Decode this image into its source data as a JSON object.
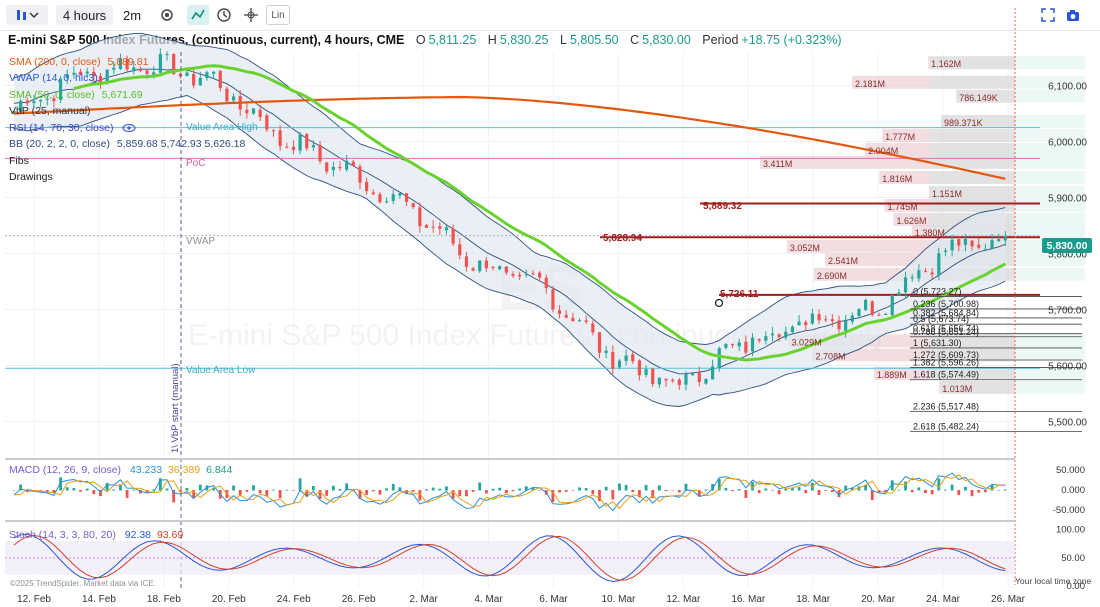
{
  "toolbar": {
    "timeframe": "4 hours",
    "period": "2m",
    "scale_label": "Lin",
    "icons": [
      "bars-style-icon",
      "chevron-down-icon",
      "settings-icon",
      "line-tool-icon",
      "clock-icon",
      "crosshair-icon",
      "linear-scale-icon",
      "fullscreen-icon",
      "camera-icon"
    ]
  },
  "header": {
    "title": "E-mini S&P 500 Index Futures, (continuous, current), 4 hours, CME",
    "open_label": "O",
    "open": "5,811.25",
    "high_label": "H",
    "high": "5,830.25",
    "low_label": "L",
    "low": "5,805.50",
    "close_label": "C",
    "close": "5,830.00",
    "period_label": "Period",
    "period_change": "+18.75 (+0.323%)"
  },
  "legends": {
    "sma200": {
      "label": "SMA (200, 0, close)",
      "value": "5,889.81",
      "color": "#e4570f"
    },
    "vwap": {
      "label": "VWAP (14, 0, hlc3)",
      "value": "",
      "color": "#2a55d6"
    },
    "sma50": {
      "label": "SMA (50, 0, close)",
      "value": "5,671.69",
      "color": "#6ad22e"
    },
    "vbp": {
      "label": "VbP (25, manual)",
      "value": "",
      "color": "#333333"
    },
    "rsi": {
      "label": "RSI (14, 70, 30, close)",
      "value": "",
      "color": "#3b3bd0"
    },
    "bb": {
      "label": "BB (20, 2, 2, 0, close)",
      "value": "5,859.68  5,742.93  5,626.18",
      "color": "#2f4f7f"
    },
    "fibs": {
      "label": "Fibs"
    },
    "drawings": {
      "label": "Drawings"
    }
  },
  "watermark": {
    "symbol": "ES",
    "name": "E-mini S&P 500 Index Futures, (continuous, current)"
  },
  "labels": {
    "value_area_high": "Value Area High",
    "poc": "PoC",
    "vwap": "VWAP",
    "value_area_low": "Value Area Low",
    "vbp_start": "1\\ VbP start (manual)",
    "sma200_level": "5,889.32",
    "level_5828": "5,828.94",
    "level_5726": "5,726.11",
    "last_price": "5,830.00",
    "copyright": "©2025 TrendSpider. Market data via ICE.",
    "local_time": "Your local time zone"
  },
  "chart_data": {
    "type": "candlestick",
    "symbol": "ES",
    "timeframe": "4 hours",
    "price_axis": {
      "ticks": [
        "6,100.00",
        "6,000.00",
        "5,900.00",
        "5,800.00",
        "5,700.00",
        "5,600.00",
        "5,500.00"
      ],
      "tick_values": [
        6100,
        6000,
        5900,
        5800,
        5700,
        5600,
        5500
      ],
      "range": [
        5440,
        6160
      ]
    },
    "x_axis": {
      "ticks": [
        "12. Feb",
        "14. Feb",
        "18. Feb",
        "20. Feb",
        "24. Feb",
        "26. Feb",
        "2. Mar",
        "4. Mar",
        "6. Mar",
        "10. Mar",
        "12. Mar",
        "16. Mar",
        "18. Mar",
        "20. Mar",
        "24. Mar",
        "26. Mar"
      ]
    },
    "approx_close_path": [
      {
        "date": "12. Feb",
        "close": 6055
      },
      {
        "date": "14. Feb",
        "close": 6120
      },
      {
        "date": "18. Feb",
        "close": 6140
      },
      {
        "date": "20. Feb",
        "close": 6110
      },
      {
        "date": "24. Feb",
        "close": 6010
      },
      {
        "date": "26. Feb",
        "close": 5950
      },
      {
        "date": "2. Mar",
        "close": 5880
      },
      {
        "date": "4. Mar",
        "close": 5780
      },
      {
        "date": "6. Mar",
        "close": 5740
      },
      {
        "date": "10. Mar",
        "close": 5620
      },
      {
        "date": "12. Mar",
        "close": 5560
      },
      {
        "date": "16. Mar",
        "close": 5640
      },
      {
        "date": "18. Mar",
        "close": 5680
      },
      {
        "date": "20. Mar",
        "close": 5700
      },
      {
        "date": "24. Mar",
        "close": 5800
      },
      {
        "date": "26. Mar",
        "close": 5830
      }
    ],
    "levels": [
      {
        "name": "sma200-level",
        "value": 5889.32,
        "color": "#a51c1c"
      },
      {
        "name": "level-5828",
        "value": 5828.94,
        "color": "#a51c1c"
      },
      {
        "name": "level-5726",
        "value": 5726.11,
        "color": "#a51c1c"
      },
      {
        "name": "value-area-high",
        "value": 6025,
        "color": "#4fc3e0"
      },
      {
        "name": "poc",
        "value": 5970,
        "color": "#e36fb0"
      },
      {
        "name": "vwap",
        "value": 5832,
        "color": "#aab0b8"
      },
      {
        "name": "value-area-low",
        "value": 5595,
        "color": "#4fc3e0"
      }
    ],
    "volume_profile": [
      {
        "label": "1.162M",
        "price": 6140
      },
      {
        "label": "2.181M",
        "price": 6105
      },
      {
        "label": "786.149K",
        "price": 6080
      },
      {
        "label": "989.371K",
        "price": 6035
      },
      {
        "label": "1.777M",
        "price": 6010
      },
      {
        "label": "2.004M",
        "price": 5985
      },
      {
        "label": "3.411M",
        "price": 5962
      },
      {
        "label": "1.816M",
        "price": 5935
      },
      {
        "label": "1.151M",
        "price": 5908
      },
      {
        "label": "1.745M",
        "price": 5885
      },
      {
        "label": "1.626M",
        "price": 5860
      },
      {
        "label": "1.380M",
        "price": 5838
      },
      {
        "label": "3.052M",
        "price": 5812
      },
      {
        "label": "2.541M",
        "price": 5788
      },
      {
        "label": "2.690M",
        "price": 5762
      },
      {
        "label": "3.029M",
        "price": 5643
      },
      {
        "label": "2.708M",
        "price": 5618
      },
      {
        "label": "1.889M",
        "price": 5585
      },
      {
        "label": "1.013M",
        "price": 5560
      }
    ],
    "fib_levels": [
      {
        "label": "0 (5,723.27)",
        "value": 5723.27
      },
      {
        "label": "0.236 (5,700.98)",
        "value": 5700.98
      },
      {
        "label": "0.382 (5,684.84)",
        "value": 5684.84
      },
      {
        "label": "0.5 (5,673.74)",
        "value": 5673.74
      },
      {
        "label": "0.618 (5,656.74)",
        "value": 5656.74
      },
      {
        "label": "0.786 (5,651.24)",
        "value": 5651.24
      },
      {
        "label": "1 (5,631.30)",
        "value": 5631.3
      },
      {
        "label": "1.272 (5,609.73)",
        "value": 5609.73
      },
      {
        "label": "1.382 (5,596.26)",
        "value": 5596.26
      },
      {
        "label": "1.618 (5,574.49)",
        "value": 5574.49
      },
      {
        "label": "2.236 (5,517.48)",
        "value": 5517.48
      },
      {
        "label": "2.618 (5,482.24)",
        "value": 5482.24
      }
    ],
    "macd": {
      "label": "MACD (12, 26, 9, close)",
      "values": [
        "43.233",
        "36.389",
        "6.844"
      ],
      "axis_ticks": [
        "50.000",
        "0.000",
        "-50.000"
      ],
      "axis_values": [
        50,
        0,
        -50
      ],
      "range": [
        -70,
        70
      ]
    },
    "stoch": {
      "label": "Stoch (14, 3, 3, 80, 20)",
      "values": [
        "92.38",
        "93.69"
      ],
      "axis_ticks": [
        "100.00",
        "50.00",
        "0.00"
      ],
      "axis_values": [
        100,
        50,
        0
      ],
      "range": [
        0,
        110
      ]
    },
    "colors": {
      "up": "#26a69a",
      "down": "#ef5350",
      "sma200": "#e4570f",
      "sma50": "#6ad22e",
      "bollinger": "#2f4f7f",
      "volume_profile": "#e8c2c6"
    }
  }
}
